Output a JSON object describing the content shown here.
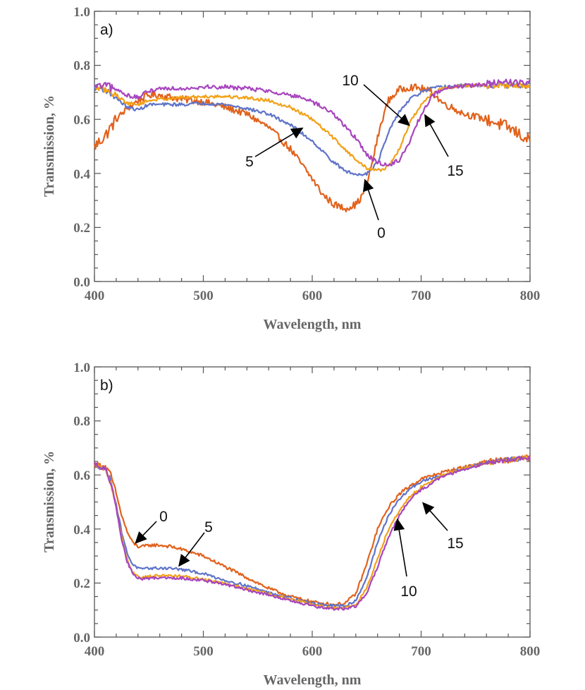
{
  "colors": {
    "orange": "#E1621C",
    "amber": "#F2A016",
    "blue": "#6074C8",
    "purple": "#A745BE",
    "arrow": "#000000",
    "axis": "#555555",
    "text": "#666666"
  },
  "chart_data": [
    {
      "type": "line",
      "panel_label": "a)",
      "xlabel": "Wavelength, nm",
      "ylabel": "Transmission, %",
      "xlim": [
        400,
        800
      ],
      "ylim": [
        0,
        1
      ],
      "xticks": [
        "400",
        "500",
        "600",
        "700",
        "800"
      ],
      "yticks": [
        "0.0",
        "0.2",
        "0.4",
        "0.6",
        "0.8",
        "1.0"
      ],
      "grid": false,
      "series": [
        {
          "name": "0",
          "color": "#E1621C",
          "noise": 0.013,
          "x": [
            400,
            410,
            420,
            430,
            440,
            450,
            460,
            480,
            500,
            520,
            540,
            560,
            580,
            600,
            610,
            620,
            630,
            640,
            645,
            650,
            655,
            660,
            665,
            670,
            680,
            690,
            700,
            710,
            720,
            740,
            760,
            780,
            800
          ],
          "y": [
            0.5,
            0.54,
            0.6,
            0.64,
            0.67,
            0.69,
            0.69,
            0.675,
            0.665,
            0.645,
            0.62,
            0.57,
            0.49,
            0.38,
            0.32,
            0.285,
            0.27,
            0.285,
            0.31,
            0.36,
            0.44,
            0.53,
            0.61,
            0.67,
            0.71,
            0.72,
            0.715,
            0.7,
            0.66,
            0.62,
            0.6,
            0.57,
            0.52
          ]
        },
        {
          "name": "5",
          "color": "#6074C8",
          "noise": 0.006,
          "x": [
            400,
            410,
            420,
            430,
            440,
            450,
            460,
            480,
            500,
            520,
            540,
            560,
            580,
            600,
            610,
            620,
            630,
            640,
            650,
            660,
            670,
            680,
            690,
            700,
            710,
            720,
            740,
            760,
            780,
            800
          ],
          "y": [
            0.72,
            0.71,
            0.68,
            0.645,
            0.635,
            0.655,
            0.655,
            0.655,
            0.66,
            0.655,
            0.64,
            0.62,
            0.58,
            0.52,
            0.48,
            0.44,
            0.41,
            0.395,
            0.4,
            0.44,
            0.55,
            0.63,
            0.675,
            0.7,
            0.715,
            0.72,
            0.725,
            0.725,
            0.725,
            0.725
          ]
        },
        {
          "name": "10",
          "color": "#F2A016",
          "noise": 0.006,
          "x": [
            400,
            410,
            420,
            430,
            440,
            450,
            460,
            480,
            500,
            520,
            540,
            560,
            580,
            600,
            620,
            640,
            650,
            660,
            670,
            680,
            690,
            700,
            710,
            720,
            740,
            760,
            780,
            800
          ],
          "y": [
            0.72,
            0.71,
            0.69,
            0.66,
            0.655,
            0.67,
            0.675,
            0.68,
            0.685,
            0.685,
            0.68,
            0.67,
            0.645,
            0.6,
            0.53,
            0.45,
            0.42,
            0.41,
            0.425,
            0.49,
            0.59,
            0.655,
            0.695,
            0.715,
            0.725,
            0.725,
            0.725,
            0.725
          ]
        },
        {
          "name": "15",
          "color": "#A745BE",
          "noise": 0.008,
          "x": [
            400,
            410,
            420,
            430,
            440,
            450,
            460,
            480,
            500,
            520,
            540,
            560,
            580,
            600,
            620,
            640,
            650,
            660,
            670,
            680,
            690,
            700,
            710,
            720,
            740,
            760,
            780,
            800
          ],
          "y": [
            0.72,
            0.725,
            0.71,
            0.69,
            0.68,
            0.705,
            0.715,
            0.715,
            0.72,
            0.72,
            0.715,
            0.705,
            0.69,
            0.665,
            0.62,
            0.53,
            0.47,
            0.44,
            0.43,
            0.45,
            0.52,
            0.62,
            0.685,
            0.715,
            0.725,
            0.73,
            0.735,
            0.74
          ]
        }
      ],
      "annotations": [
        {
          "text": "10",
          "target": [
            690,
            0.575
          ]
        },
        {
          "text": "5",
          "target": [
            592,
            0.57
          ]
        },
        {
          "text": "15",
          "target": [
            703,
            0.62
          ]
        },
        {
          "text": "0",
          "target": [
            648,
            0.38
          ]
        }
      ]
    },
    {
      "type": "line",
      "panel_label": "b)",
      "xlabel": "Wavelength, nm",
      "ylabel": "Transmission, %",
      "xlim": [
        400,
        800
      ],
      "ylim": [
        0,
        1
      ],
      "xticks": [
        "400",
        "500",
        "600",
        "700",
        "800"
      ],
      "yticks": [
        "0.0",
        "0.2",
        "0.4",
        "0.6",
        "0.8",
        "1.0"
      ],
      "grid": false,
      "series": [
        {
          "name": "0",
          "color": "#E1621C",
          "noise": 0.006,
          "x": [
            400,
            410,
            415,
            420,
            425,
            430,
            435,
            440,
            445,
            450,
            460,
            470,
            480,
            500,
            520,
            540,
            560,
            580,
            600,
            610,
            620,
            630,
            640,
            650,
            660,
            670,
            680,
            690,
            700,
            720,
            740,
            760,
            780,
            800
          ],
          "y": [
            0.64,
            0.63,
            0.6,
            0.53,
            0.45,
            0.39,
            0.35,
            0.335,
            0.335,
            0.34,
            0.34,
            0.335,
            0.325,
            0.3,
            0.26,
            0.22,
            0.18,
            0.15,
            0.13,
            0.125,
            0.12,
            0.125,
            0.16,
            0.27,
            0.4,
            0.48,
            0.53,
            0.56,
            0.585,
            0.61,
            0.63,
            0.65,
            0.655,
            0.665
          ]
        },
        {
          "name": "5",
          "color": "#6074C8",
          "noise": 0.005,
          "x": [
            400,
            410,
            415,
            420,
            425,
            430,
            435,
            440,
            445,
            450,
            460,
            470,
            480,
            500,
            520,
            540,
            560,
            580,
            600,
            610,
            620,
            630,
            640,
            650,
            660,
            670,
            680,
            690,
            700,
            720,
            740,
            760,
            780,
            800
          ],
          "y": [
            0.64,
            0.62,
            0.58,
            0.49,
            0.39,
            0.31,
            0.27,
            0.255,
            0.25,
            0.255,
            0.255,
            0.255,
            0.25,
            0.235,
            0.21,
            0.19,
            0.165,
            0.145,
            0.125,
            0.12,
            0.115,
            0.115,
            0.135,
            0.22,
            0.35,
            0.45,
            0.51,
            0.55,
            0.575,
            0.6,
            0.625,
            0.645,
            0.655,
            0.665
          ]
        },
        {
          "name": "10",
          "color": "#F2A016",
          "noise": 0.005,
          "x": [
            400,
            410,
            415,
            420,
            425,
            430,
            435,
            440,
            445,
            450,
            460,
            470,
            480,
            500,
            520,
            540,
            560,
            580,
            600,
            610,
            620,
            630,
            640,
            650,
            660,
            670,
            680,
            690,
            700,
            720,
            740,
            760,
            780,
            800
          ],
          "y": [
            0.64,
            0.62,
            0.57,
            0.48,
            0.37,
            0.29,
            0.24,
            0.225,
            0.22,
            0.225,
            0.228,
            0.228,
            0.225,
            0.215,
            0.2,
            0.18,
            0.16,
            0.14,
            0.12,
            0.112,
            0.108,
            0.108,
            0.12,
            0.18,
            0.29,
            0.4,
            0.47,
            0.52,
            0.555,
            0.6,
            0.625,
            0.645,
            0.655,
            0.665
          ]
        },
        {
          "name": "15",
          "color": "#A745BE",
          "noise": 0.005,
          "x": [
            400,
            410,
            415,
            420,
            425,
            430,
            435,
            440,
            445,
            450,
            460,
            470,
            480,
            500,
            520,
            540,
            560,
            580,
            600,
            610,
            620,
            630,
            640,
            650,
            660,
            670,
            680,
            690,
            700,
            720,
            740,
            760,
            780,
            800
          ],
          "y": [
            0.64,
            0.62,
            0.57,
            0.48,
            0.36,
            0.28,
            0.235,
            0.218,
            0.215,
            0.218,
            0.22,
            0.22,
            0.218,
            0.21,
            0.195,
            0.175,
            0.155,
            0.135,
            0.115,
            0.108,
            0.104,
            0.105,
            0.115,
            0.16,
            0.26,
            0.37,
            0.45,
            0.51,
            0.545,
            0.595,
            0.62,
            0.645,
            0.655,
            0.665
          ]
        }
      ],
      "annotations": [
        {
          "text": "0",
          "target": [
            437,
            0.345
          ]
        },
        {
          "text": "5",
          "target": [
            477,
            0.26
          ]
        },
        {
          "text": "15",
          "target": [
            701,
            0.5
          ]
        },
        {
          "text": "10",
          "target": [
            678,
            0.44
          ]
        }
      ]
    }
  ]
}
